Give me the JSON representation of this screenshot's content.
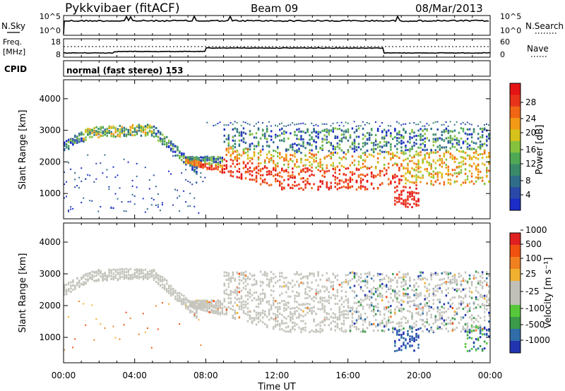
{
  "header": {
    "title": "Pykkvibaer (fitACF)",
    "beam": "Beam 09",
    "date": "08/Mar/2013"
  },
  "panels": {
    "nsky": {
      "left_label": "N.Sky",
      "left_ticks": [
        "10^5",
        "10^0"
      ],
      "right_ticks": [
        "10^5",
        "10^0"
      ],
      "right_label": "N.Search"
    },
    "freq": {
      "left_label_line1": "Freq.",
      "left_label_line2": "[MHz]",
      "left_ticks": [
        "18",
        "8"
      ],
      "right_ticks": [
        "60",
        "0"
      ],
      "right_label": "Nave"
    },
    "cpid": {
      "label": "CPID",
      "text": "normal (fast stereo) 153"
    }
  },
  "chart_data": [
    {
      "type": "heatmap",
      "quantity": "Power",
      "xlabel": "",
      "ylabel": "Slant Range [km]",
      "x_ticks": [
        "00:00",
        "04:00",
        "08:00",
        "12:00",
        "16:00",
        "20:00",
        "00:00"
      ],
      "y_ticks": [
        1000,
        2000,
        3000,
        4000
      ],
      "ylim": [
        200,
        4600
      ],
      "colorbar": {
        "label": "Power [dB]",
        "ticks": [
          "4",
          "8",
          "12",
          "16",
          "20",
          "24",
          "28"
        ],
        "colors": [
          "#1c2cc8",
          "#2a48a8",
          "#2f6d8a",
          "#3a8a6a",
          "#4ea854",
          "#86c23e",
          "#d6c21a",
          "#f29a16",
          "#f06614",
          "#e8321a",
          "#e51414"
        ]
      }
    },
    {
      "type": "heatmap",
      "quantity": "Velocity",
      "xlabel": "Time UT",
      "ylabel": "Slant Range [km]",
      "x_ticks": [
        "00:00",
        "04:00",
        "08:00",
        "12:00",
        "16:00",
        "20:00",
        "00:00"
      ],
      "y_ticks": [
        1000,
        2000,
        3000,
        4000
      ],
      "ylim": [
        200,
        4600
      ],
      "colorbar": {
        "label": "Velocity [m s⁻¹]",
        "ticks": [
          "1000",
          "500",
          "100",
          "25",
          "-25",
          "-100",
          "-500",
          "-1000"
        ],
        "colors": [
          "#2233b0",
          "#2f6ea8",
          "#3a9a4a",
          "#56c83a",
          "#c0c0b8",
          "#c0c0b8",
          "#f0b030",
          "#f08020",
          "#f05010",
          "#e02020"
        ]
      }
    }
  ]
}
